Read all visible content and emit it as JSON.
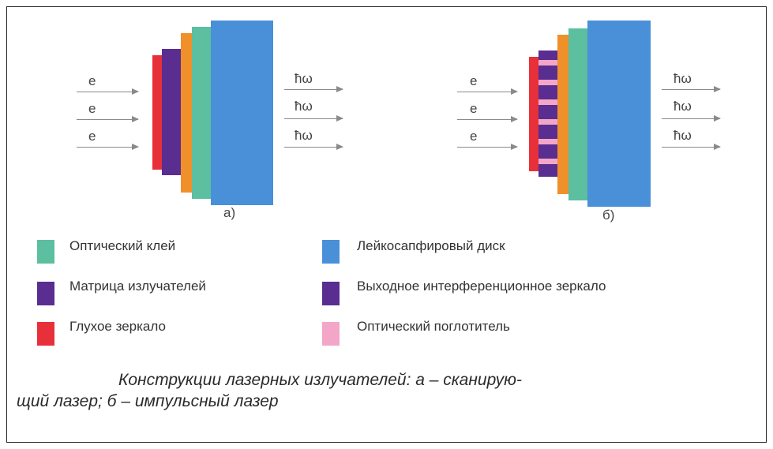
{
  "colors": {
    "glue": "#5bbfa0",
    "disk": "#4a90d9",
    "matrix": "#5a2d91",
    "output_mirror": "#5a2d91",
    "blind_mirror": "#e8303a",
    "absorber": "#f4a6c8",
    "orange_layer": "#f0902a"
  },
  "diagram_a": {
    "inputs": [
      "e",
      "e",
      "e"
    ],
    "outputs": [
      "ħω",
      "ħω",
      "ħω"
    ],
    "label": "а)"
  },
  "diagram_b": {
    "inputs": [
      "e",
      "e",
      "e"
    ],
    "outputs": [
      "ħω",
      "ħω",
      "ħω"
    ],
    "label": "б)"
  },
  "legend": [
    {
      "text": "Оптический клей",
      "color": "#5bbfa0"
    },
    {
      "text": "Лейкосапфировый диск",
      "color": "#4a90d9"
    },
    {
      "text": "Матрица излучателей",
      "color": "#5a2d91"
    },
    {
      "text": "Выходное интерференционное зеркало",
      "color": "#5a2d91"
    },
    {
      "text": "Глухое зеркало",
      "color": "#e8303a"
    },
    {
      "text": "Оптический поглотитель",
      "color": "#f4a6c8"
    }
  ],
  "caption": {
    "line1": "Конструкции лазерных излучателей: а – сканирую-",
    "line2": "щий лазер; б – импульсный лазер"
  }
}
